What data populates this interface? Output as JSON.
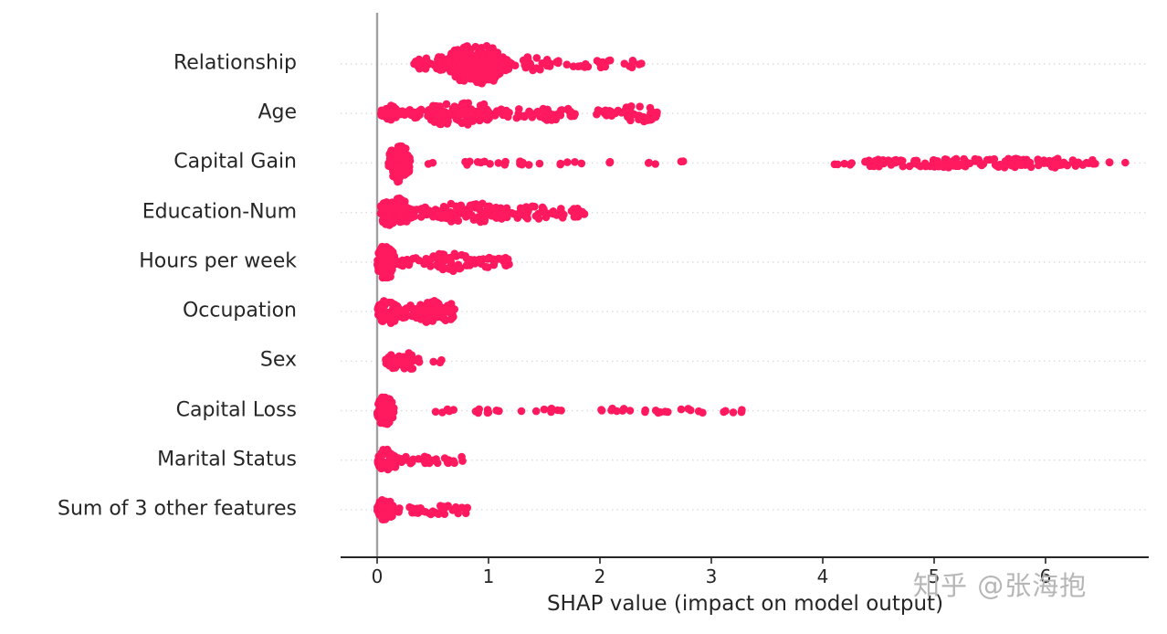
{
  "watermark": "知乎 @张海抱",
  "chart_data": {
    "type": "beeswarm",
    "title": "",
    "xlabel": "SHAP value (impact on model output)",
    "ylabel": "",
    "xlim": [
      -0.35,
      6.95
    ],
    "xticks": [
      "0",
      "1",
      "2",
      "3",
      "4",
      "5",
      "6"
    ],
    "grid": "horizontal-dotted",
    "legend": "none",
    "point_color": "#ff0d57",
    "zero_line_color": "#a0a0a0",
    "axis_color": "#262626",
    "features": [
      {
        "name": "Relationship",
        "clusters": [
          {
            "x0": 0.33,
            "x1": 0.75,
            "n": 40,
            "hh": 8,
            "shape": "ellipse"
          },
          {
            "x0": 0.62,
            "x1": 1.18,
            "n": 175,
            "hh": 22,
            "shape": "ellipse"
          },
          {
            "x0": 1.1,
            "x1": 1.6,
            "n": 40,
            "hh": 8,
            "shape": "ellipse"
          },
          {
            "x0": 1.5,
            "x1": 2.3,
            "n": 26,
            "hh": 4,
            "shape": "band"
          },
          {
            "x0": 2.33,
            "x1": 2.38,
            "n": 2,
            "hh": 2,
            "shape": "band"
          }
        ]
      },
      {
        "name": "Age",
        "clusters": [
          {
            "x0": 0.03,
            "x1": 0.18,
            "n": 28,
            "hh": 9,
            "shape": "ellipse"
          },
          {
            "x0": 0.15,
            "x1": 0.5,
            "n": 30,
            "hh": 6,
            "shape": "band"
          },
          {
            "x0": 0.45,
            "x1": 0.75,
            "n": 50,
            "hh": 12,
            "shape": "ellipse"
          },
          {
            "x0": 0.7,
            "x1": 1.02,
            "n": 65,
            "hh": 14,
            "shape": "ellipse"
          },
          {
            "x0": 1.0,
            "x1": 1.45,
            "n": 20,
            "hh": 5,
            "shape": "band"
          },
          {
            "x0": 1.42,
            "x1": 1.78,
            "n": 28,
            "hh": 8,
            "shape": "ellipse"
          },
          {
            "x0": 1.9,
            "x1": 2.2,
            "n": 12,
            "hh": 4,
            "shape": "band"
          },
          {
            "x0": 2.18,
            "x1": 2.52,
            "n": 32,
            "hh": 9,
            "shape": "ellipse"
          }
        ]
      },
      {
        "name": "Capital Gain",
        "clusters": [
          {
            "x0": 0.1,
            "x1": 0.3,
            "n": 95,
            "hh": 21,
            "shape": "ellipse"
          },
          {
            "x0": 0.45,
            "x1": 0.55,
            "n": 2,
            "hh": 2,
            "shape": "band"
          },
          {
            "x0": 0.78,
            "x1": 1.1,
            "n": 8,
            "hh": 2,
            "shape": "band"
          },
          {
            "x0": 1.1,
            "x1": 1.55,
            "n": 9,
            "hh": 2,
            "shape": "band"
          },
          {
            "x0": 1.6,
            "x1": 1.85,
            "n": 5,
            "hh": 2,
            "shape": "band"
          },
          {
            "x0": 1.95,
            "x1": 2.1,
            "n": 3,
            "hh": 2,
            "shape": "band"
          },
          {
            "x0": 2.4,
            "x1": 2.5,
            "n": 3,
            "hh": 2,
            "shape": "band"
          },
          {
            "x0": 2.72,
            "x1": 2.78,
            "n": 2,
            "hh": 2,
            "shape": "band"
          },
          {
            "x0": 4.1,
            "x1": 4.3,
            "n": 6,
            "hh": 2.5,
            "shape": "band"
          },
          {
            "x0": 4.35,
            "x1": 5.0,
            "n": 42,
            "hh": 4,
            "shape": "band"
          },
          {
            "x0": 5.0,
            "x1": 6.15,
            "n": 90,
            "hh": 5,
            "shape": "band"
          },
          {
            "x0": 6.15,
            "x1": 6.45,
            "n": 14,
            "hh": 3.5,
            "shape": "band"
          },
          {
            "x0": 6.55,
            "x1": 6.6,
            "n": 2,
            "hh": 2,
            "shape": "band"
          },
          {
            "x0": 6.68,
            "x1": 6.72,
            "n": 1,
            "hh": 1,
            "shape": "band"
          }
        ]
      },
      {
        "name": "Education-Num",
        "clusters": [
          {
            "x0": 0.02,
            "x1": 0.3,
            "n": 80,
            "hh": 17,
            "shape": "ellipse"
          },
          {
            "x0": 0.28,
            "x1": 0.55,
            "n": 22,
            "hh": 6,
            "shape": "band"
          },
          {
            "x0": 0.52,
            "x1": 0.82,
            "n": 35,
            "hh": 10,
            "shape": "ellipse"
          },
          {
            "x0": 0.78,
            "x1": 1.05,
            "n": 40,
            "hh": 11,
            "shape": "ellipse"
          },
          {
            "x0": 1.05,
            "x1": 1.55,
            "n": 45,
            "hh": 7,
            "shape": "band"
          },
          {
            "x0": 1.55,
            "x1": 1.87,
            "n": 26,
            "hh": 6,
            "shape": "ellipse"
          }
        ]
      },
      {
        "name": "Hours per week",
        "clusters": [
          {
            "x0": 0.0,
            "x1": 0.16,
            "n": 90,
            "hh": 19,
            "shape": "ellipse"
          },
          {
            "x0": 0.16,
            "x1": 0.45,
            "n": 18,
            "hh": 5,
            "shape": "band"
          },
          {
            "x0": 0.42,
            "x1": 0.88,
            "n": 52,
            "hh": 10,
            "shape": "ellipse"
          },
          {
            "x0": 0.85,
            "x1": 1.22,
            "n": 26,
            "hh": 6,
            "shape": "ellipse"
          }
        ]
      },
      {
        "name": "Occupation",
        "clusters": [
          {
            "x0": 0.0,
            "x1": 0.2,
            "n": 55,
            "hh": 13,
            "shape": "ellipse"
          },
          {
            "x0": 0.18,
            "x1": 0.4,
            "n": 22,
            "hh": 7,
            "shape": "band"
          },
          {
            "x0": 0.36,
            "x1": 0.58,
            "n": 50,
            "hh": 13,
            "shape": "ellipse"
          },
          {
            "x0": 0.52,
            "x1": 0.7,
            "n": 28,
            "hh": 11,
            "shape": "ellipse"
          }
        ]
      },
      {
        "name": "Sex",
        "clusters": [
          {
            "x0": 0.07,
            "x1": 0.22,
            "n": 28,
            "hh": 9,
            "shape": "ellipse"
          },
          {
            "x0": 0.2,
            "x1": 0.38,
            "n": 30,
            "hh": 10,
            "shape": "ellipse"
          },
          {
            "x0": 0.5,
            "x1": 0.58,
            "n": 3,
            "hh": 2,
            "shape": "band"
          }
        ]
      },
      {
        "name": "Capital Loss",
        "clusters": [
          {
            "x0": 0.0,
            "x1": 0.15,
            "n": 80,
            "hh": 17,
            "shape": "ellipse"
          },
          {
            "x0": 0.5,
            "x1": 0.78,
            "n": 6,
            "hh": 2,
            "shape": "band"
          },
          {
            "x0": 0.82,
            "x1": 1.32,
            "n": 11,
            "hh": 2.5,
            "shape": "band"
          },
          {
            "x0": 1.35,
            "x1": 1.78,
            "n": 8,
            "hh": 2.5,
            "shape": "band"
          },
          {
            "x0": 2.0,
            "x1": 2.3,
            "n": 8,
            "hh": 2.5,
            "shape": "band"
          },
          {
            "x0": 2.4,
            "x1": 2.95,
            "n": 12,
            "hh": 2.5,
            "shape": "band"
          },
          {
            "x0": 3.05,
            "x1": 3.3,
            "n": 5,
            "hh": 2,
            "shape": "band"
          }
        ]
      },
      {
        "name": "Marital Status",
        "clusters": [
          {
            "x0": 0.0,
            "x1": 0.18,
            "n": 52,
            "hh": 13,
            "shape": "ellipse"
          },
          {
            "x0": 0.18,
            "x1": 0.45,
            "n": 14,
            "hh": 4,
            "shape": "band"
          },
          {
            "x0": 0.45,
            "x1": 0.78,
            "n": 16,
            "hh": 4,
            "shape": "band"
          }
        ]
      },
      {
        "name": "Sum of 3 other features",
        "clusters": [
          {
            "x0": 0.0,
            "x1": 0.15,
            "n": 52,
            "hh": 13,
            "shape": "ellipse"
          },
          {
            "x0": 0.15,
            "x1": 0.45,
            "n": 14,
            "hh": 4,
            "shape": "band"
          },
          {
            "x0": 0.45,
            "x1": 0.82,
            "n": 20,
            "hh": 5,
            "shape": "band"
          }
        ]
      }
    ]
  }
}
